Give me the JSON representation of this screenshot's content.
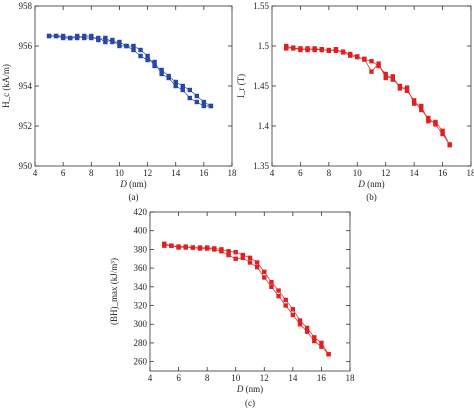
{
  "colors": {
    "panel_a": "#2846a6",
    "panel_b": "#e02020",
    "panel_c": "#e02020",
    "axis": "#333333"
  },
  "chart_data": [
    {
      "panel": "(a)",
      "type": "line",
      "xlabel": "D (nm)",
      "ylabel": "H_c (kA/m)",
      "xlim": [
        4,
        18
      ],
      "ylim": [
        950,
        958
      ],
      "x_ticks": [
        "4",
        "6",
        "8",
        "10",
        "12",
        "14",
        "16",
        "18"
      ],
      "y_ticks": [
        "950",
        "952",
        "954",
        "956",
        "958"
      ],
      "grid": false,
      "series": [
        {
          "x": [
            5.0,
            5.5,
            6.0,
            6.5,
            7.0,
            7.5,
            8.0,
            8.5,
            9.0,
            9.5,
            10.0,
            10.5,
            11.0,
            11.5,
            12.0,
            12.5,
            13.0,
            13.5,
            14.0,
            14.5,
            15.0,
            15.5,
            16.0,
            16.5
          ],
          "y": [
            956.5,
            956.5,
            956.5,
            956.4,
            956.4,
            956.5,
            956.5,
            956.3,
            956.4,
            956.2,
            956.2,
            956.0,
            956.0,
            955.8,
            955.5,
            955.0,
            954.8,
            954.5,
            954.2,
            954.0,
            953.8,
            953.5,
            953.2,
            953.0
          ]
        },
        {
          "x": [
            5.0,
            5.5,
            6.0,
            6.5,
            7.0,
            7.5,
            8.0,
            8.5,
            9.0,
            9.5,
            10.0,
            10.5,
            11.0,
            11.5,
            12.0,
            12.5,
            13.0,
            13.5,
            14.0,
            14.5,
            15.0,
            15.5,
            16.0,
            16.5
          ],
          "y": [
            956.5,
            956.5,
            956.4,
            956.4,
            956.5,
            956.4,
            956.4,
            956.4,
            956.2,
            956.3,
            956.0,
            956.0,
            955.8,
            955.5,
            955.3,
            955.2,
            954.6,
            954.4,
            954.0,
            953.8,
            953.4,
            953.2,
            953.0,
            953.0
          ]
        }
      ]
    },
    {
      "panel": "(b)",
      "type": "line",
      "xlabel": "D (nm)",
      "ylabel": "I_r (T)",
      "xlim": [
        4,
        18
      ],
      "ylim": [
        1.35,
        1.55
      ],
      "x_ticks": [
        "4",
        "6",
        "8",
        "10",
        "12",
        "14",
        "16",
        "18"
      ],
      "y_ticks": [
        "1.35",
        "1.4",
        "1.45",
        "1.5",
        "1.55"
      ],
      "grid": false,
      "series": [
        {
          "x": [
            5.0,
            5.5,
            6.0,
            6.5,
            7.0,
            7.5,
            8.0,
            8.5,
            9.0,
            9.5,
            10.0,
            10.5,
            11.0,
            11.5,
            12.0,
            12.5,
            13.0,
            13.5,
            14.0,
            14.5,
            15.0,
            15.5,
            16.0,
            16.5
          ],
          "y": [
            1.5,
            1.497,
            1.497,
            1.495,
            1.497,
            1.495,
            1.495,
            1.494,
            1.493,
            1.49,
            1.487,
            1.483,
            1.481,
            1.475,
            1.465,
            1.458,
            1.45,
            1.444,
            1.432,
            1.42,
            1.41,
            1.402,
            1.39,
            1.377
          ]
        },
        {
          "x": [
            5.0,
            5.5,
            6.0,
            6.5,
            7.0,
            7.5,
            8.0,
            8.5,
            9.0,
            9.5,
            10.0,
            10.5,
            11.0,
            11.5,
            12.0,
            12.5,
            13.0,
            13.5,
            14.0,
            14.5,
            15.0,
            15.5,
            16.0,
            16.5
          ],
          "y": [
            1.497,
            1.498,
            1.495,
            1.497,
            1.495,
            1.496,
            1.494,
            1.496,
            1.492,
            1.488,
            1.486,
            1.484,
            1.468,
            1.478,
            1.46,
            1.462,
            1.447,
            1.448,
            1.428,
            1.425,
            1.406,
            1.405,
            1.394,
            1.376
          ]
        }
      ]
    },
    {
      "panel": "(c)",
      "type": "line",
      "xlabel": "D (nm)",
      "ylabel": "(BH)_max (kJ/m³)",
      "xlim": [
        4,
        18
      ],
      "ylim": [
        250,
        420
      ],
      "x_ticks": [
        "4",
        "6",
        "8",
        "10",
        "12",
        "14",
        "16",
        "18"
      ],
      "y_ticks": [
        "260",
        "280",
        "300",
        "320",
        "340",
        "360",
        "380",
        "400",
        "420"
      ],
      "grid": false,
      "series": [
        {
          "x": [
            5.0,
            5.5,
            6.0,
            6.5,
            7.0,
            7.5,
            8.0,
            8.5,
            9.0,
            9.5,
            10.0,
            10.5,
            11.0,
            11.5,
            12.0,
            12.5,
            13.0,
            13.5,
            14.0,
            14.5,
            15.0,
            15.5,
            16.0,
            16.5
          ],
          "y": [
            386,
            384,
            383,
            383,
            382,
            382,
            382,
            381,
            380,
            378,
            377,
            374,
            371,
            366,
            356,
            345,
            336,
            326,
            316,
            304,
            296,
            286,
            280,
            268
          ]
        },
        {
          "x": [
            5.0,
            5.5,
            6.0,
            6.5,
            7.0,
            7.5,
            8.0,
            8.5,
            9.0,
            9.5,
            10.0,
            10.5,
            11.0,
            11.5,
            12.0,
            12.5,
            13.0,
            13.5,
            14.0,
            14.5,
            15.0,
            15.5,
            16.0,
            16.5
          ],
          "y": [
            384,
            384,
            382,
            382,
            382,
            381,
            381,
            380,
            378,
            374,
            370,
            371,
            366,
            361,
            350,
            340,
            330,
            320,
            310,
            300,
            292,
            282,
            276,
            268
          ]
        }
      ]
    }
  ]
}
